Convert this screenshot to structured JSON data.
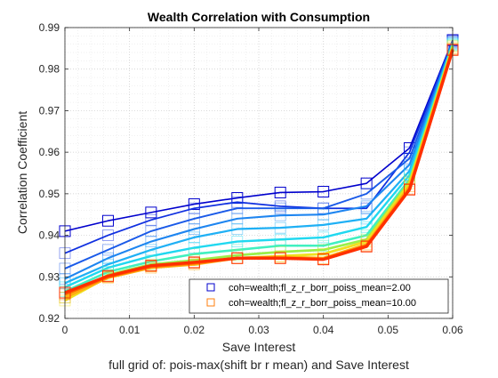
{
  "chart_data": {
    "type": "line",
    "title": "Wealth Correlation with Consumption",
    "xlabel": "Save Interest",
    "ylabel": "Correlation Coefficient",
    "caption": "full grid of: pois-max(shift br r mean) and Save Interest",
    "xlim": [
      0,
      0.06
    ],
    "ylim": [
      0.92,
      0.99
    ],
    "x_ticks": [
      "0",
      "0.01",
      "0.02",
      "0.03",
      "0.04",
      "0.05",
      "0.06"
    ],
    "y_ticks": [
      "0.92",
      "0.93",
      "0.94",
      "0.95",
      "0.96",
      "0.97",
      "0.98",
      "0.99"
    ],
    "grid": "on (major and minor, dotted)",
    "legend_position": "bottom-right",
    "legend": [
      {
        "label": "coh=wealth;fl_z_r_borr_poiss_mean=2.00",
        "color": "#0000cd"
      },
      {
        "label": "coh=wealth;fl_z_r_borr_poiss_mean=10.00",
        "color": "#ff7f0e"
      }
    ],
    "x": [
      0,
      0.00667,
      0.01333,
      0.02,
      0.02667,
      0.03333,
      0.04,
      0.04667,
      0.05333,
      0.06
    ],
    "series": [
      {
        "color": "#0000cd",
        "marker": "square",
        "values": [
          0.941,
          0.9435,
          0.9455,
          0.9475,
          0.949,
          0.9503,
          0.9505,
          0.9525,
          0.961,
          0.987
        ]
      },
      {
        "color": "#1030e0",
        "marker": "square",
        "values": [
          0.9357,
          0.94,
          0.9437,
          0.9465,
          0.948,
          0.947,
          0.9465,
          0.9465,
          0.96,
          0.9868
        ]
      },
      {
        "color": "#1a5ae8",
        "marker": "square",
        "values": [
          0.932,
          0.9365,
          0.941,
          0.944,
          0.9465,
          0.9465,
          0.9465,
          0.95,
          0.9585,
          0.9866
        ]
      },
      {
        "color": "#1e85f0",
        "marker": "square",
        "values": [
          0.9295,
          0.9345,
          0.9385,
          0.9415,
          0.944,
          0.9448,
          0.945,
          0.947,
          0.957,
          0.9864
        ]
      },
      {
        "color": "#1fb0f5",
        "marker": "square",
        "values": [
          0.9285,
          0.933,
          0.9365,
          0.9395,
          0.9415,
          0.9418,
          0.9425,
          0.944,
          0.9555,
          0.9862
        ]
      },
      {
        "color": "#20d8f0",
        "marker": "square",
        "values": [
          0.9275,
          0.9322,
          0.935,
          0.937,
          0.9385,
          0.939,
          0.9395,
          0.942,
          0.9545,
          0.986
        ]
      },
      {
        "color": "#40f0c0",
        "marker": "square",
        "values": [
          0.9265,
          0.9312,
          0.9337,
          0.9355,
          0.9365,
          0.9375,
          0.9375,
          0.94,
          0.9535,
          0.9858
        ]
      },
      {
        "color": "#9aef4a",
        "marker": "square",
        "values": [
          0.925,
          0.9305,
          0.933,
          0.934,
          0.9352,
          0.936,
          0.9365,
          0.939,
          0.953,
          0.9856
        ]
      },
      {
        "color": "#f0e020",
        "marker": "square",
        "values": [
          0.9243,
          0.93,
          0.9325,
          0.9335,
          0.9345,
          0.935,
          0.9355,
          0.9385,
          0.9525,
          0.9853
        ]
      },
      {
        "color": "#ffae10",
        "marker": "square",
        "values": [
          0.925,
          0.9298,
          0.9322,
          0.933,
          0.9345,
          0.9348,
          0.9345,
          0.9378,
          0.9518,
          0.985
        ]
      },
      {
        "color": "#ff6a00",
        "marker": "square",
        "values": [
          0.9258,
          0.93,
          0.9325,
          0.9333,
          0.9345,
          0.9345,
          0.9343,
          0.9375,
          0.9512,
          0.9848
        ]
      },
      {
        "color": "#ff3000",
        "marker": "square",
        "values": [
          0.9262,
          0.9302,
          0.9327,
          0.9335,
          0.9345,
          0.9345,
          0.9342,
          0.9373,
          0.951,
          0.9846
        ]
      }
    ]
  }
}
